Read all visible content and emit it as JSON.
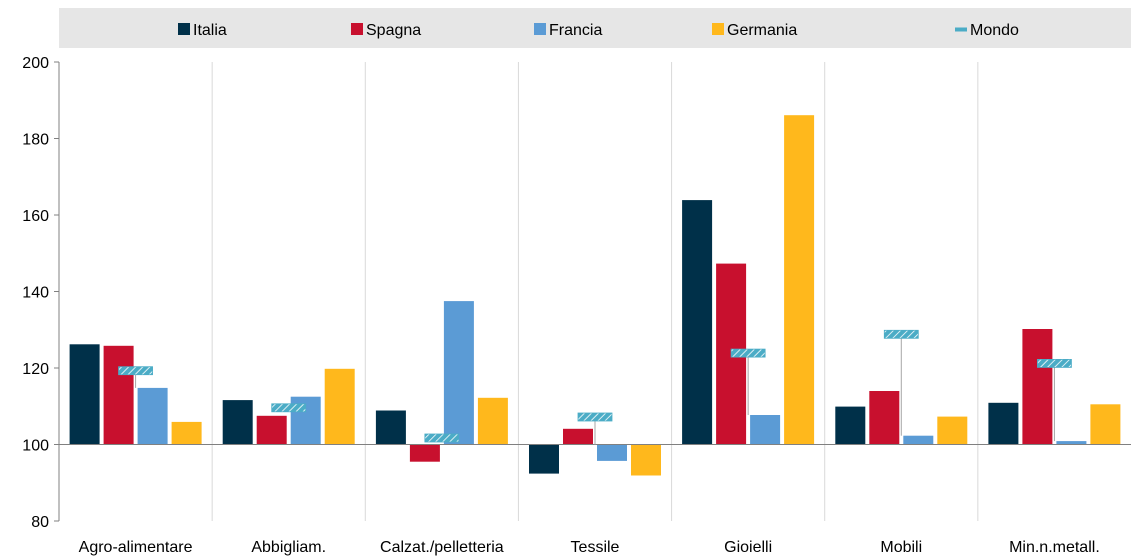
{
  "chart_data": {
    "type": "bar",
    "categories": [
      "Agro-alimentare",
      "Abbigliam.",
      "Calzat./pelletteria",
      "Tessile",
      "Gioielli",
      "Mobili",
      "Min.n.metall."
    ],
    "series": [
      {
        "name": "Italia",
        "color": "#003049",
        "values": [
          126.2,
          111.6,
          108.9,
          92.4,
          163.9,
          109.9,
          110.9
        ]
      },
      {
        "name": "Spagna",
        "color": "#C8102E",
        "values": [
          125.8,
          107.5,
          95.5,
          104.1,
          147.3,
          114.0,
          130.2
        ]
      },
      {
        "name": "Francia",
        "color": "#5B9BD5",
        "values": [
          114.8,
          112.5,
          137.5,
          95.7,
          107.7,
          102.3,
          100.9
        ]
      },
      {
        "name": "Germania",
        "color": "#FFB81C",
        "values": [
          105.9,
          119.8,
          112.2,
          91.9,
          186.1,
          107.3,
          110.5
        ]
      }
    ],
    "marker_series": {
      "name": "Mondo",
      "color": "#4BACC6",
      "values": [
        119.3,
        109.6,
        101.7,
        107.2,
        123.9,
        128.8,
        121.2
      ]
    },
    "baseline": 100,
    "ylim": [
      80,
      200
    ],
    "yticks": [
      "80",
      "100",
      "120",
      "140",
      "160",
      "180",
      "200"
    ],
    "legend_position": "top",
    "grid": "vertical separators between categories"
  }
}
